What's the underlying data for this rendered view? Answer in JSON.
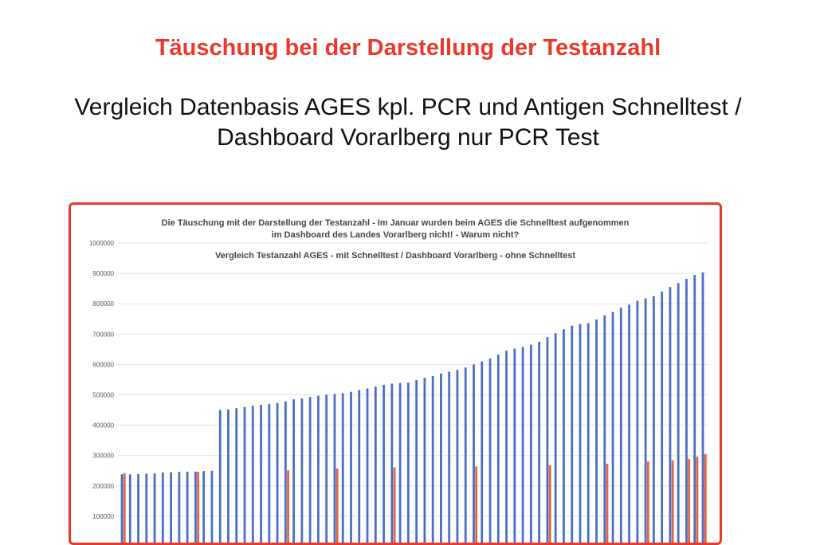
{
  "page": {
    "headline": "Täuschung bei der Darstellung der Testanzahl",
    "subtitle_line1": "Vergleich Datenbasis AGES kpl. PCR und Antigen Schnelltest /",
    "subtitle_line2": "Dashboard Vorarlberg nur PCR Test"
  },
  "colors": {
    "headline": "#e8392b",
    "frame": "#e8392b",
    "series_ages": "#4a6fc2",
    "series_vorarlberg": "#e4623f"
  },
  "chart_data": {
    "type": "bar",
    "title_line1": "Die Täuschung mit der Darstellung der Testanzahl - Im Januar wurden beim AGES die Schnelltest aufgenommen",
    "title_line2": "im Dashboard des Landes Vorarlberg nicht! - Warum nicht?",
    "subtitle": "Vergleich Testanzahl AGES - mit Schnelltest / Dashboard Vorarlberg - ohne Schnelltest",
    "ylim": [
      0,
      1000000
    ],
    "yticks": [
      "1000000",
      "900000",
      "800000",
      "700000",
      "600000",
      "500000",
      "400000",
      "300000",
      "200000",
      "100000"
    ],
    "grid": true,
    "legend": "none",
    "series": [
      {
        "values": [
          238000,
          238000,
          239000,
          240000,
          241000,
          244000,
          245000,
          246000,
          247000,
          247000,
          249000,
          250000,
          450000,
          452000,
          456000,
          460000,
          464000,
          467000,
          470000,
          473000,
          478000,
          485000,
          488000,
          493000,
          497000,
          500000,
          503000,
          505000,
          510000,
          516000,
          521000,
          527000,
          533000,
          537000,
          539000,
          540000,
          548000,
          556000,
          562000,
          570000,
          576000,
          582000,
          590000,
          600000,
          610000,
          620000,
          632000,
          645000,
          652000,
          658000,
          665000,
          675000,
          690000,
          703000,
          716000,
          728000,
          733000,
          736000,
          748000,
          762000,
          773000,
          787000,
          797000,
          810000,
          818000,
          825000,
          840000,
          855000,
          868000,
          882000,
          895000,
          903000
        ]
      },
      {
        "points": [
          {
            "index": 0,
            "value": 242000
          },
          {
            "index": 9,
            "value": 246000
          },
          {
            "index": 20,
            "value": 251000
          },
          {
            "index": 26,
            "value": 257000
          },
          {
            "index": 33,
            "value": 261000
          },
          {
            "index": 43,
            "value": 264000
          },
          {
            "index": 52,
            "value": 268000
          },
          {
            "index": 59,
            "value": 273000
          },
          {
            "index": 64,
            "value": 280000
          },
          {
            "index": 67,
            "value": 284000
          },
          {
            "index": 69,
            "value": 289000
          },
          {
            "index": 70,
            "value": 296000
          },
          {
            "index": 71,
            "value": 300000
          },
          {
            "index": 71,
            "value": 305000
          }
        ]
      }
    ]
  }
}
